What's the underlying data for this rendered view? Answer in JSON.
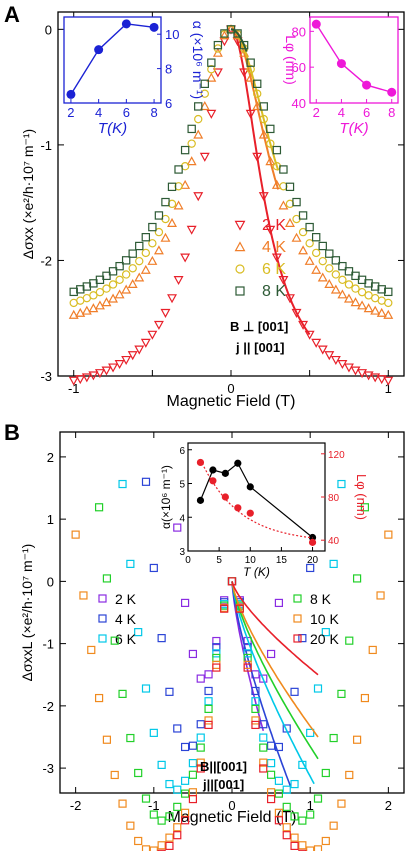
{
  "figure": {
    "panel_a_label": "A",
    "panel_b_label": "B"
  },
  "chart_data": [
    {
      "id": "A",
      "type": "scatter",
      "xlabel": "Magnetic Field (T)",
      "ylabel": "Δσxx (×e²/h·10⁷ m⁻¹)",
      "xlim": [
        -1.1,
        1.1
      ],
      "ylim": [
        -3.0,
        0.15
      ],
      "xticks": [
        -1,
        -0.5,
        0,
        0.5,
        1
      ],
      "xtick_labels": [
        "-1",
        "",
        "0",
        "",
        "1"
      ],
      "yticks": [
        0,
        -1,
        -2,
        -3
      ],
      "ytick_labels": [
        "0",
        "-1",
        "-2",
        "-3"
      ],
      "legend_placement": "center-right",
      "annotation": [
        "B ⊥ [001]",
        "j || [001]"
      ],
      "series": [
        {
          "name": "2 K",
          "marker": "triangle-down",
          "color": "#e8202a",
          "width": 0.23,
          "depth": 3.2,
          "range": 1.0,
          "fit_range": 0.5
        },
        {
          "name": "4 K",
          "marker": "triangle-up",
          "color": "#f07e2a",
          "width": 0.29,
          "depth": 2.68,
          "range": 1.0,
          "fit_range": 0.3
        },
        {
          "name": "6 K",
          "marker": "circle",
          "color": "#d9bd24",
          "width": 0.32,
          "depth": 2.61,
          "range": 1.0,
          "fit_range": 0.3
        },
        {
          "name": "8 K",
          "marker": "square",
          "color": "#2d5a35",
          "width": 0.35,
          "depth": 2.55,
          "range": 1.0,
          "fit_range": 0.1
        }
      ],
      "insets": [
        {
          "id": "alpha",
          "color": "#1b22d4",
          "xlabel": "T(K)",
          "ylabel": "α (×10⁶ m⁻¹)",
          "xlim": [
            1.5,
            8.5
          ],
          "ylim": [
            6,
            11
          ],
          "xticks": [
            2,
            4,
            6,
            8
          ],
          "yticks": [
            6,
            8,
            10
          ],
          "x": [
            2,
            4,
            6,
            8
          ],
          "y": [
            6.5,
            9.1,
            10.6,
            10.4
          ]
        },
        {
          "id": "Lphi",
          "color": "#ee18d8",
          "xlabel": "T(K)",
          "ylabel": "Lφ (nm)",
          "xlim": [
            1.5,
            8.5
          ],
          "ylim": [
            40,
            88
          ],
          "xticks": [
            2,
            4,
            6,
            8
          ],
          "yticks": [
            40,
            60,
            80
          ],
          "x": [
            2,
            4,
            6,
            8
          ],
          "y": [
            84,
            62,
            50,
            46
          ]
        }
      ]
    },
    {
      "id": "B",
      "type": "scatter",
      "xlabel": "Magnetic Field (T)",
      "ylabel": "ΔσxxL (×e²/h·10⁷ m⁻¹)",
      "xlim": [
        -2.2,
        2.2
      ],
      "ylim": [
        -3.4,
        2.4
      ],
      "xticks": [
        -2,
        -1,
        0,
        1,
        2
      ],
      "yticks": [
        2,
        1,
        0,
        -1,
        -2,
        -3
      ],
      "legend_placement": "middle, split left/right",
      "annotation": [
        "B||[001]",
        "j||[001]"
      ],
      "series": [
        {
          "name": "2 K",
          "color": "#8a2be2",
          "b1": 0.46,
          "kink": 0.22,
          "c": 16,
          "y0": -2.4,
          "fit_end": 0.4
        },
        {
          "name": "4 K",
          "color": "#2b44d6",
          "b1": 0.62,
          "kink": 0.45,
          "c": 12,
          "y0": -3.3,
          "fit_end": 0.75
        },
        {
          "name": "6 K",
          "color": "#00c8e8",
          "b1": 0.78,
          "kink": 0.62,
          "c": 9,
          "y0": -3.25,
          "fit_end": 1.05
        },
        {
          "name": "8 K",
          "color": "#22d02a",
          "b1": 0.9,
          "kink": 0.82,
          "c": 7,
          "y0": -2.85,
          "fit_end": 1.1
        },
        {
          "name": "10 K",
          "color": "#f08a1e",
          "b1": 1.08,
          "kink": 0.96,
          "c": 5,
          "y0": -2.5,
          "fit_end": 1.1
        },
        {
          "name": "20 K",
          "color": "#e8202a",
          "b1": 1.15,
          "kink": 1.12,
          "c": 0,
          "y0": -1.5,
          "fit_end": 1.1
        }
      ],
      "inset": {
        "xlabel": "T (K)",
        "ylabel_left": "α(×10⁶ m⁻¹)",
        "ylabel_right": "Lφ (nm)",
        "xlim": [
          0,
          22
        ],
        "xticks": [
          0,
          5,
          10,
          15,
          20
        ],
        "left_ylim": [
          3.0,
          6.2
        ],
        "left_yticks": [
          3,
          4,
          5,
          6
        ],
        "right_ylim": [
          30,
          130
        ],
        "right_yticks": [
          40,
          80,
          120
        ],
        "alpha": {
          "color": "#000000",
          "x": [
            2,
            4,
            6,
            8,
            10,
            20
          ],
          "y": [
            4.5,
            5.4,
            5.3,
            5.6,
            4.9,
            3.4
          ]
        },
        "Lphi": {
          "color": "#e8202a",
          "x": [
            2,
            4,
            6,
            8,
            10,
            20
          ],
          "y": [
            112,
            95,
            80,
            70,
            65,
            38
          ]
        }
      }
    }
  ]
}
